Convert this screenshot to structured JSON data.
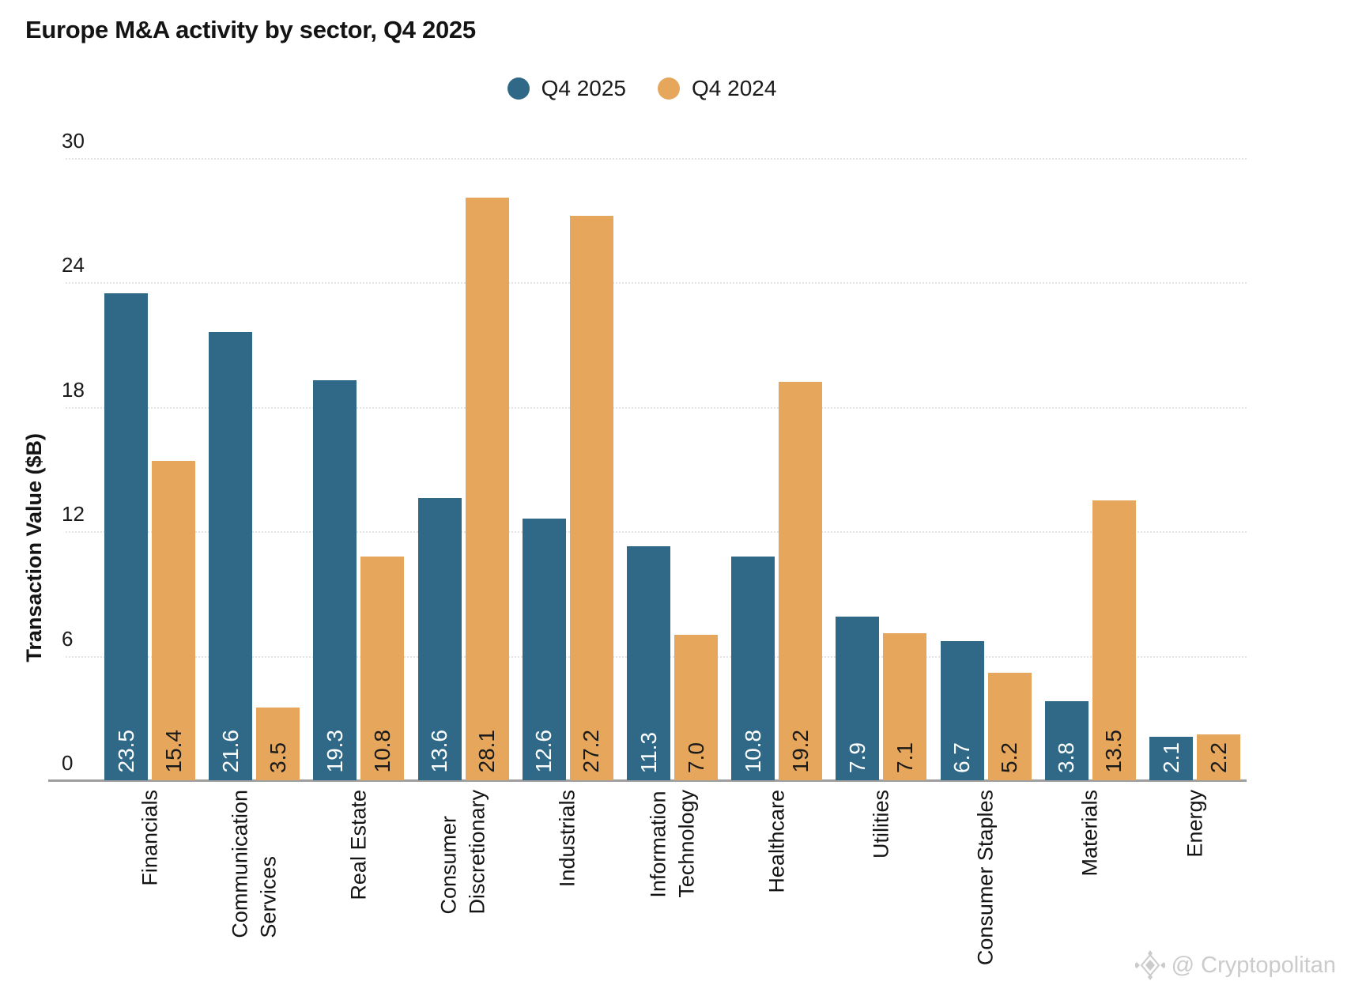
{
  "title": "Europe M&A activity by sector, Q4 2025",
  "legend": [
    {
      "label": "Q4 2025",
      "color": "#2F6987"
    },
    {
      "label": "Q4 2024",
      "color": "#E6A75D"
    }
  ],
  "watermark": "@ Cryptopolitan",
  "colors": {
    "series1": "#2F6987",
    "series2": "#E6A75D",
    "gridline": "#E5E5E5",
    "axis": "#9E9E9E",
    "label_on_series1": "#FFFFFF",
    "label_on_series2": "#1A1A1A"
  },
  "chart_data": {
    "type": "bar",
    "title": "Europe M&A activity by sector, Q4 2025",
    "xlabel": "",
    "ylabel": "Transaction Value ($B)",
    "ylim": [
      0,
      30
    ],
    "yticks": [
      0,
      6,
      12,
      18,
      24,
      30
    ],
    "grid": true,
    "legend_position": "top-center",
    "bar_value_labels": "one-decimal, rotated 90deg inside bar base",
    "categories": [
      "Financials",
      "Communication Services",
      "Real Estate",
      "Consumer Discretionary",
      "Industrials",
      "Information Technology",
      "Healthcare",
      "Utilities",
      "Consumer Staples",
      "Materials",
      "Energy"
    ],
    "category_label_lines": [
      [
        "Financials"
      ],
      [
        "Communication",
        "Services"
      ],
      [
        "Real Estate"
      ],
      [
        "Consumer",
        "Discretionary"
      ],
      [
        "Industrials"
      ],
      [
        "Information",
        "Technology"
      ],
      [
        "Healthcare"
      ],
      [
        "Utilities"
      ],
      [
        "Consumer Staples"
      ],
      [
        "Materials"
      ],
      [
        "Energy"
      ]
    ],
    "series": [
      {
        "name": "Q4 2025",
        "color": "#2F6987",
        "label_color": "#FFFFFF",
        "values": [
          23.5,
          21.6,
          19.3,
          13.6,
          12.6,
          11.3,
          10.8,
          7.9,
          6.7,
          3.8,
          2.1
        ]
      },
      {
        "name": "Q4 2024",
        "color": "#E6A75D",
        "label_color": "#1A1A1A",
        "values": [
          15.4,
          3.5,
          10.8,
          28.1,
          27.2,
          7.0,
          19.2,
          7.1,
          5.2,
          13.5,
          2.2
        ]
      }
    ]
  }
}
